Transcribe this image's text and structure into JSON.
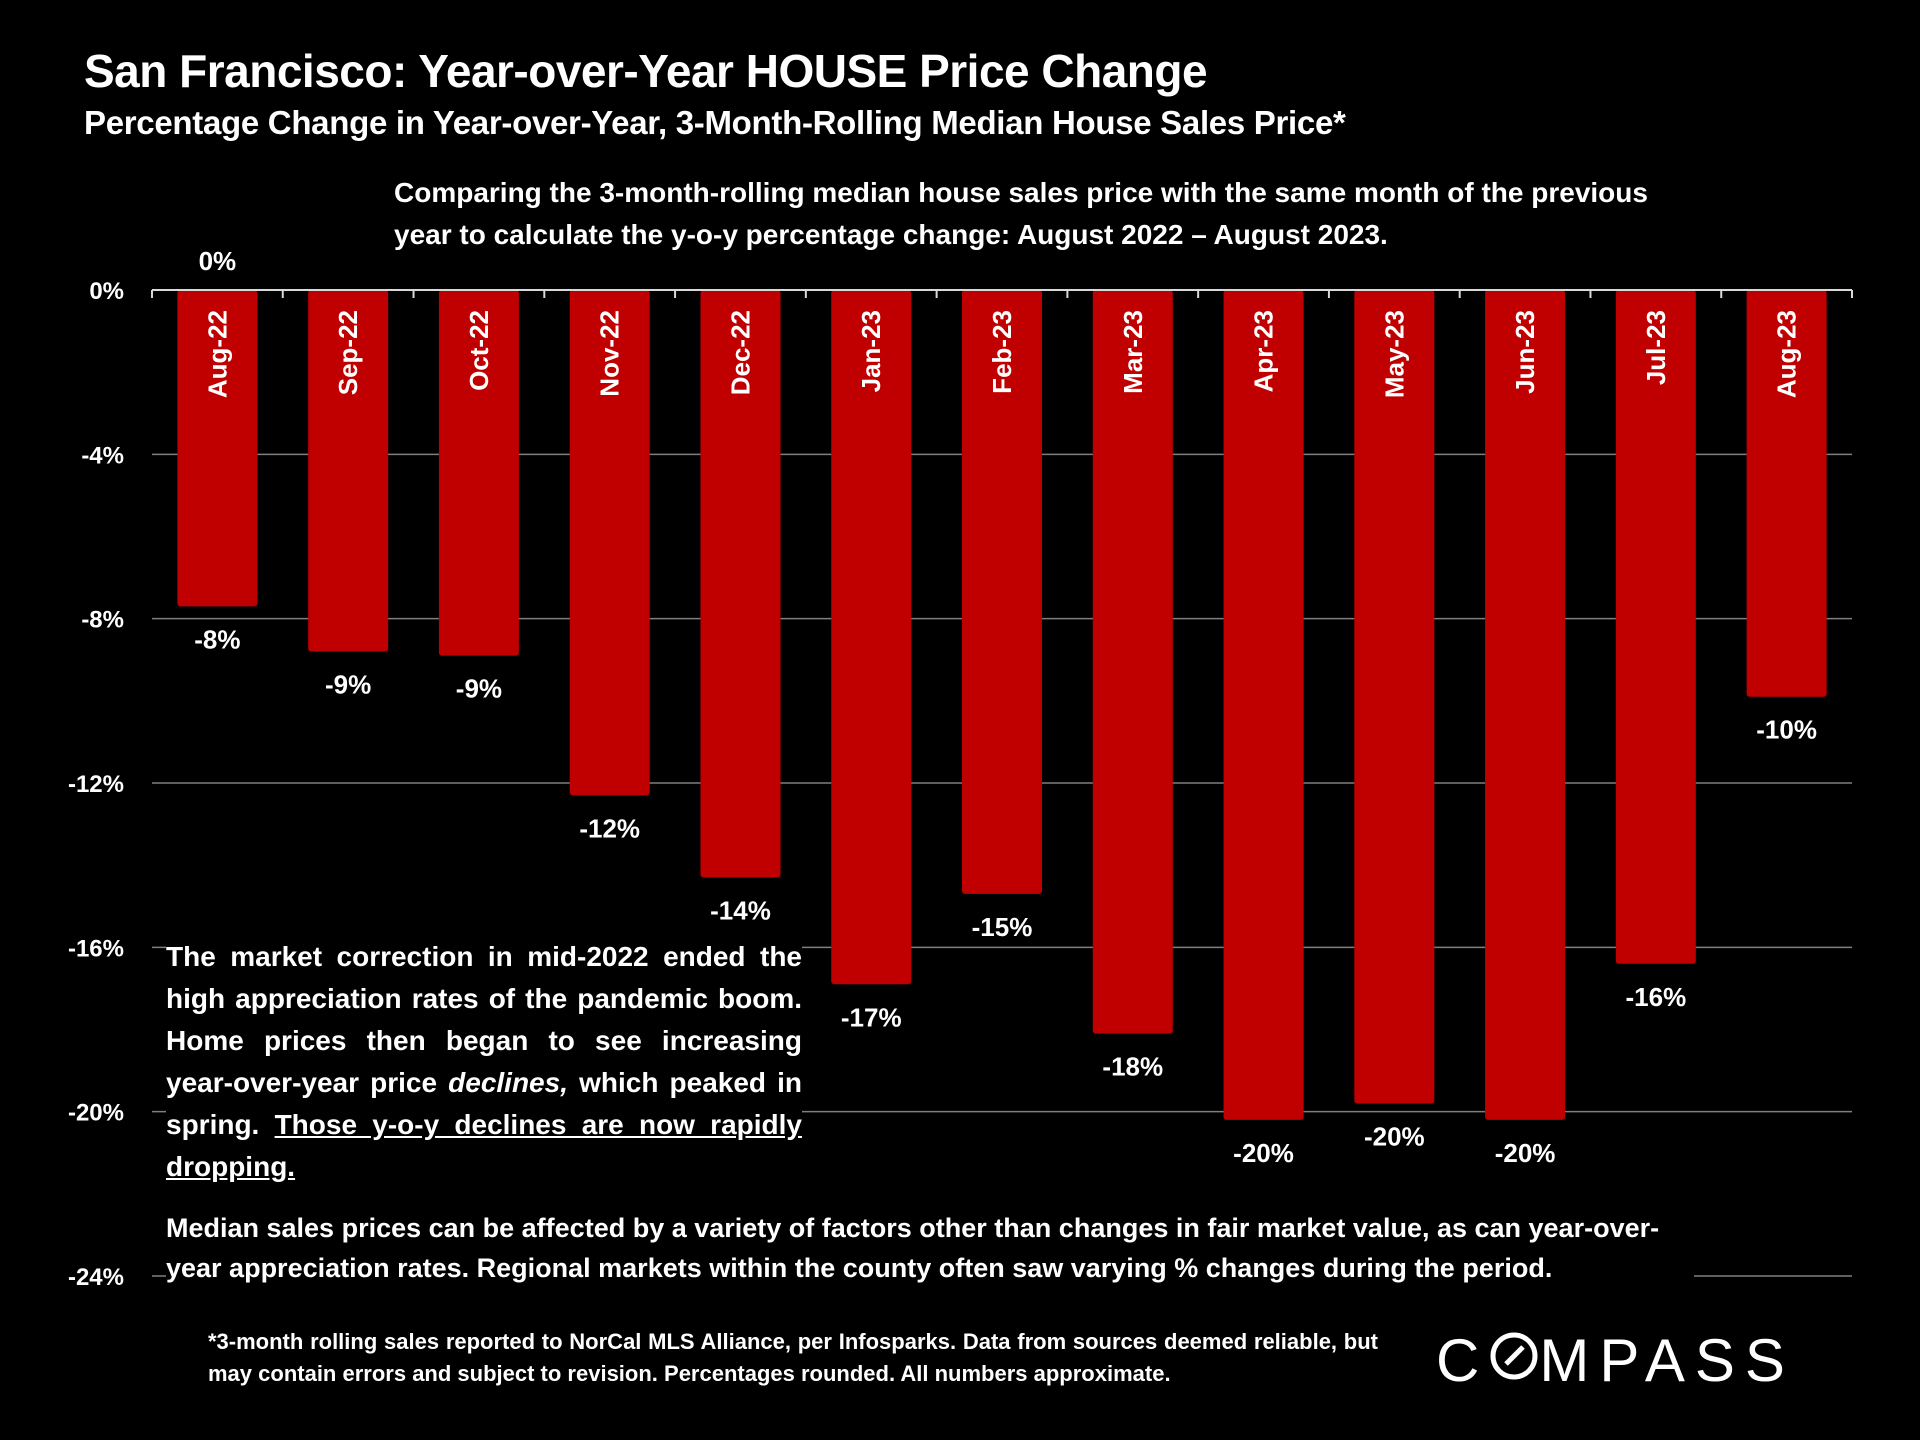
{
  "title": "San Francisco: Year-over-Year HOUSE Price Change",
  "subtitle": "Percentage Change in Year-over-Year, 3-Month-Rolling Median House Sales Price*",
  "description": "Comparing the 3-month-rolling median house sales price with the same month of the previous year to calculate the y-o-y percentage change: August 2022 – August 2023.",
  "note": {
    "part1": "The market correction in mid-2022 ended the high appreciation rates of the pandemic boom.  Home prices then began to see increasing year-over-year price ",
    "italic": "declines,",
    "part2": " which peaked in spring. ",
    "underlined": "Those y-o-y declines are now rapidly dropping."
  },
  "note2": "Median sales prices can be affected by a variety of factors other than changes in fair market value, as can year-over-year appreciation rates. Regional markets within the county often saw varying % changes during the period.",
  "footnote": "*3-month rolling sales reported to NorCal MLS Alliance, per Infosparks. Data from sources deemed reliable, but may contain errors and subject to revision. Percentages rounded. All numbers approximate.",
  "logo": {
    "before": "C",
    "after": "MPASS"
  },
  "colors": {
    "bar": "#c00000",
    "background": "#000000",
    "text": "#ffffff",
    "grid": "#7f7f7f"
  },
  "chart_data": {
    "type": "bar",
    "categories": [
      "Aug-22",
      "Sep-22",
      "Oct-22",
      "Nov-22",
      "Dec-22",
      "Jan-23",
      "Feb-23",
      "Mar-23",
      "Apr-23",
      "May-23",
      "Jun-23",
      "Jul-23",
      "Aug-23"
    ],
    "values": [
      -7.7,
      -8.8,
      -8.9,
      -12.3,
      -14.3,
      -16.9,
      -14.7,
      -18.1,
      -20.2,
      -19.8,
      -20.2,
      -16.4,
      -9.9
    ],
    "data_labels": [
      "-8%",
      "-9%",
      "-9%",
      "-12%",
      "-14%",
      "-17%",
      "-15%",
      "-18%",
      "-20%",
      "-20%",
      "-20%",
      "-16%",
      "-10%"
    ],
    "top_label": "0%",
    "yticks": [
      0,
      -4,
      -8,
      -12,
      -16,
      -20,
      -24
    ],
    "ytick_labels": [
      "0%",
      "-4%",
      "-8%",
      "-12%",
      "-16%",
      "-20%",
      "-24%"
    ],
    "ylim": [
      -24,
      0
    ],
    "grid": true,
    "xlabel": "",
    "ylabel": ""
  }
}
